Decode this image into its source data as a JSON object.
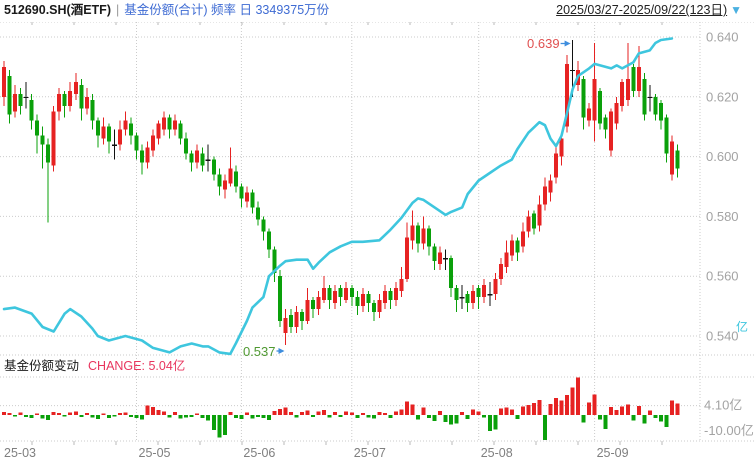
{
  "header": {
    "symbol_title": "512690.SH(酒ETF)",
    "separator": "|",
    "series_label": "基金份额(合计) 频率 日 3349375万份",
    "date_range": "2025/03/27-2025/09/22(123日)",
    "dropdown_icon": "▼"
  },
  "panel2_header": {
    "label": "基金份额变动",
    "change_label": "CHANGE: 5.04亿"
  },
  "colors": {
    "up": "#e62222",
    "down": "#0aa00a",
    "doji": "#111111",
    "share_line": "#3ec6de",
    "header_accent": "#3e6bd3",
    "dropdown": "#4ab0e0",
    "change_text": "#e8355e",
    "annotation_high": "#e05050",
    "annotation_low": "#4f9931",
    "arrow": "#3e8ede"
  },
  "chart_data": {
    "type": "candlestick",
    "overlays": [
      "line",
      "bar"
    ],
    "title": "512690.SH(酒ETF) 基金份额(合计) 频率 日",
    "total_days": 123,
    "x_axis": {
      "month_labels": [
        {
          "label": "25-03",
          "day": 0
        },
        {
          "label": "25-05",
          "day": 24
        },
        {
          "label": "25-06",
          "day": 43
        },
        {
          "label": "25-07",
          "day": 63
        },
        {
          "label": "25-08",
          "day": 86
        },
        {
          "label": "25-09",
          "day": 107
        }
      ]
    },
    "price_axis": {
      "ticks": [
        0.64,
        0.62,
        0.6,
        0.58,
        0.56,
        0.54
      ],
      "unit_hint": "亿"
    },
    "volume_axis": {
      "ticks": [
        {
          "label": "4.10亿",
          "value": 4.1
        },
        {
          "label": "-10.00亿",
          "value": -10.0
        }
      ]
    },
    "annotations": {
      "high": {
        "label": "0.639",
        "value": 0.639,
        "day": 103
      },
      "low": {
        "label": "0.537",
        "value": 0.537,
        "day": 51
      }
    },
    "candles": [
      [
        0.62,
        0.632,
        0.617,
        0.63
      ],
      [
        0.627,
        0.629,
        0.611,
        0.614
      ],
      [
        0.615,
        0.624,
        0.613,
        0.621
      ],
      [
        0.621,
        0.623,
        0.614,
        0.617
      ],
      [
        0.62,
        0.625,
        0.616,
        0.62
      ],
      [
        0.619,
        0.621,
        0.609,
        0.612
      ],
      [
        0.612,
        0.614,
        0.601,
        0.607
      ],
      [
        0.607,
        0.61,
        0.596,
        0.604
      ],
      [
        0.604,
        0.606,
        0.578,
        0.598
      ],
      [
        0.597,
        0.617,
        0.595,
        0.615
      ],
      [
        0.615,
        0.623,
        0.612,
        0.621
      ],
      [
        0.621,
        0.622,
        0.613,
        0.617
      ],
      [
        0.617,
        0.625,
        0.615,
        0.622
      ],
      [
        0.621,
        0.628,
        0.619,
        0.625
      ],
      [
        0.624,
        0.626,
        0.612,
        0.616
      ],
      [
        0.616,
        0.623,
        0.614,
        0.62
      ],
      [
        0.619,
        0.621,
        0.609,
        0.612
      ],
      [
        0.612,
        0.613,
        0.603,
        0.607
      ],
      [
        0.606,
        0.613,
        0.604,
        0.61
      ],
      [
        0.61,
        0.611,
        0.601,
        0.605
      ],
      [
        0.604,
        0.609,
        0.599,
        0.604
      ],
      [
        0.604,
        0.612,
        0.602,
        0.609
      ],
      [
        0.609,
        0.615,
        0.607,
        0.612
      ],
      [
        0.611,
        0.613,
        0.604,
        0.607
      ],
      [
        0.607,
        0.608,
        0.599,
        0.602
      ],
      [
        0.602,
        0.604,
        0.594,
        0.598
      ],
      [
        0.598,
        0.605,
        0.596,
        0.603
      ],
      [
        0.602,
        0.609,
        0.6,
        0.607
      ],
      [
        0.606,
        0.612,
        0.604,
        0.611
      ],
      [
        0.609,
        0.615,
        0.607,
        0.613
      ],
      [
        0.613,
        0.614,
        0.606,
        0.609
      ],
      [
        0.609,
        0.614,
        0.607,
        0.612
      ],
      [
        0.611,
        0.612,
        0.604,
        0.606
      ],
      [
        0.606,
        0.608,
        0.599,
        0.601
      ],
      [
        0.601,
        0.602,
        0.595,
        0.598
      ],
      [
        0.598,
        0.604,
        0.596,
        0.602
      ],
      [
        0.601,
        0.603,
        0.595,
        0.597
      ],
      [
        0.599,
        0.604,
        0.595,
        0.599
      ],
      [
        0.599,
        0.6,
        0.592,
        0.594
      ],
      [
        0.594,
        0.596,
        0.587,
        0.59
      ],
      [
        0.589,
        0.594,
        0.586,
        0.592
      ],
      [
        0.591,
        0.603,
        0.59,
        0.596
      ],
      [
        0.595,
        0.597,
        0.588,
        0.59
      ],
      [
        0.59,
        0.591,
        0.583,
        0.586
      ],
      [
        0.585,
        0.59,
        0.583,
        0.588
      ],
      [
        0.588,
        0.589,
        0.581,
        0.583
      ],
      [
        0.583,
        0.585,
        0.577,
        0.579
      ],
      [
        0.579,
        0.58,
        0.572,
        0.575
      ],
      [
        0.575,
        0.576,
        0.566,
        0.569
      ],
      [
        0.569,
        0.57,
        0.558,
        0.561
      ],
      [
        0.56,
        0.562,
        0.543,
        0.545
      ],
      [
        0.541,
        0.549,
        0.537,
        0.546
      ],
      [
        0.547,
        0.549,
        0.541,
        0.543
      ],
      [
        0.543,
        0.55,
        0.541,
        0.548
      ],
      [
        0.548,
        0.549,
        0.542,
        0.545
      ],
      [
        0.545,
        0.556,
        0.544,
        0.552
      ],
      [
        0.552,
        0.553,
        0.546,
        0.549
      ],
      [
        0.549,
        0.555,
        0.547,
        0.553
      ],
      [
        0.552,
        0.56,
        0.551,
        0.556
      ],
      [
        0.556,
        0.557,
        0.549,
        0.552
      ],
      [
        0.551,
        0.557,
        0.549,
        0.555
      ],
      [
        0.556,
        0.557,
        0.55,
        0.553
      ],
      [
        0.552,
        0.558,
        0.551,
        0.556
      ],
      [
        0.556,
        0.557,
        0.55,
        0.553
      ],
      [
        0.553,
        0.555,
        0.547,
        0.55
      ],
      [
        0.55,
        0.556,
        0.548,
        0.554
      ],
      [
        0.554,
        0.555,
        0.548,
        0.551
      ],
      [
        0.551,
        0.552,
        0.545,
        0.548
      ],
      [
        0.548,
        0.554,
        0.546,
        0.552
      ],
      [
        0.551,
        0.557,
        0.549,
        0.555
      ],
      [
        0.555,
        0.556,
        0.549,
        0.552
      ],
      [
        0.552,
        0.558,
        0.55,
        0.556
      ],
      [
        0.555,
        0.563,
        0.553,
        0.559
      ],
      [
        0.559,
        0.578,
        0.558,
        0.573
      ],
      [
        0.572,
        0.582,
        0.569,
        0.577
      ],
      [
        0.577,
        0.578,
        0.568,
        0.571
      ],
      [
        0.571,
        0.58,
        0.569,
        0.576
      ],
      [
        0.576,
        0.577,
        0.567,
        0.57
      ],
      [
        0.57,
        0.571,
        0.562,
        0.565
      ],
      [
        0.564,
        0.57,
        0.562,
        0.568
      ],
      [
        0.566,
        0.569,
        0.562,
        0.566
      ],
      [
        0.566,
        0.567,
        0.553,
        0.556
      ],
      [
        0.556,
        0.557,
        0.548,
        0.552
      ],
      [
        0.553,
        0.557,
        0.549,
        0.553
      ],
      [
        0.554,
        0.555,
        0.548,
        0.551
      ],
      [
        0.551,
        0.557,
        0.549,
        0.555
      ],
      [
        0.556,
        0.557,
        0.549,
        0.553
      ],
      [
        0.553,
        0.559,
        0.551,
        0.557
      ],
      [
        0.554,
        0.558,
        0.55,
        0.554
      ],
      [
        0.554,
        0.561,
        0.552,
        0.559
      ],
      [
        0.559,
        0.566,
        0.557,
        0.564
      ],
      [
        0.563,
        0.572,
        0.561,
        0.568
      ],
      [
        0.567,
        0.574,
        0.565,
        0.572
      ],
      [
        0.572,
        0.573,
        0.565,
        0.568
      ],
      [
        0.57,
        0.578,
        0.568,
        0.575
      ],
      [
        0.575,
        0.582,
        0.573,
        0.58
      ],
      [
        0.581,
        0.582,
        0.574,
        0.576
      ],
      [
        0.577,
        0.587,
        0.575,
        0.584
      ],
      [
        0.584,
        0.593,
        0.582,
        0.59
      ],
      [
        0.588,
        0.594,
        0.585,
        0.592
      ],
      [
        0.593,
        0.604,
        0.591,
        0.601
      ],
      [
        0.6,
        0.608,
        0.597,
        0.606
      ],
      [
        0.61,
        0.634,
        0.608,
        0.631
      ],
      [
        0.629,
        0.639,
        0.62,
        0.629
      ],
      [
        0.624,
        0.632,
        0.622,
        0.629
      ],
      [
        0.626,
        0.627,
        0.609,
        0.613
      ],
      [
        0.612,
        0.618,
        0.61,
        0.616
      ],
      [
        0.612,
        0.638,
        0.605,
        0.626
      ],
      [
        0.622,
        0.623,
        0.609,
        0.611
      ],
      [
        0.613,
        0.614,
        0.606,
        0.609
      ],
      [
        0.602,
        0.616,
        0.6,
        0.615
      ],
      [
        0.611,
        0.62,
        0.609,
        0.618
      ],
      [
        0.617,
        0.626,
        0.615,
        0.625
      ],
      [
        0.619,
        0.638,
        0.617,
        0.626
      ],
      [
        0.63,
        0.631,
        0.62,
        0.622
      ],
      [
        0.622,
        0.637,
        0.62,
        0.63
      ],
      [
        0.626,
        0.628,
        0.612,
        0.614
      ],
      [
        0.62,
        0.624,
        0.615,
        0.62
      ],
      [
        0.62,
        0.621,
        0.612,
        0.614
      ],
      [
        0.618,
        0.619,
        0.609,
        0.612
      ],
      [
        0.613,
        0.614,
        0.598,
        0.601
      ],
      [
        0.594,
        0.607,
        0.592,
        0.605
      ],
      [
        0.602,
        0.604,
        0.593,
        0.596
      ]
    ],
    "share_line": {
      "unit": "万份",
      "latest": 3349375,
      "points_price_scale": [
        [
          0,
          0.549
        ],
        [
          2,
          0.5495
        ],
        [
          5,
          0.5475
        ],
        [
          7,
          0.543
        ],
        [
          9,
          0.5415
        ],
        [
          11,
          0.5475
        ],
        [
          12,
          0.549
        ],
        [
          14,
          0.5465
        ],
        [
          16,
          0.5425
        ],
        [
          17,
          0.54
        ],
        [
          19,
          0.5385
        ],
        [
          22,
          0.54
        ],
        [
          25,
          0.5385
        ],
        [
          27,
          0.536
        ],
        [
          30,
          0.5345
        ],
        [
          32,
          0.5365
        ],
        [
          34,
          0.5375
        ],
        [
          36,
          0.5365
        ],
        [
          37,
          0.5365
        ],
        [
          39,
          0.5345
        ],
        [
          41,
          0.534
        ],
        [
          42,
          0.5375
        ],
        [
          44,
          0.545
        ],
        [
          45,
          0.5495
        ],
        [
          47,
          0.553
        ],
        [
          48,
          0.56
        ],
        [
          50,
          0.5635
        ],
        [
          51,
          0.565
        ],
        [
          53,
          0.5655
        ],
        [
          55,
          0.5655
        ],
        [
          56,
          0.5625
        ],
        [
          57,
          0.5645
        ],
        [
          59,
          0.568
        ],
        [
          61,
          0.57
        ],
        [
          63,
          0.5715
        ],
        [
          65,
          0.5715
        ],
        [
          68,
          0.572
        ],
        [
          70,
          0.5755
        ],
        [
          72,
          0.5795
        ],
        [
          74,
          0.5845
        ],
        [
          75,
          0.586
        ],
        [
          76,
          0.5855
        ],
        [
          78,
          0.583
        ],
        [
          80,
          0.5805
        ],
        [
          81,
          0.5815
        ],
        [
          83,
          0.583
        ],
        [
          84,
          0.5875
        ],
        [
          86,
          0.592
        ],
        [
          88,
          0.5945
        ],
        [
          90,
          0.597
        ],
        [
          92,
          0.599
        ],
        [
          93,
          0.6025
        ],
        [
          95,
          0.608
        ],
        [
          97,
          0.6115
        ],
        [
          98,
          0.6105
        ],
        [
          99,
          0.606
        ],
        [
          100,
          0.6035
        ],
        [
          101,
          0.607
        ],
        [
          102,
          0.6145
        ],
        [
          103,
          0.6225
        ],
        [
          104,
          0.627
        ],
        [
          106,
          0.6295
        ],
        [
          107,
          0.631
        ],
        [
          109,
          0.63
        ],
        [
          110,
          0.6295
        ],
        [
          111,
          0.6305
        ],
        [
          112,
          0.6295
        ],
        [
          114,
          0.6315
        ],
        [
          115,
          0.6345
        ],
        [
          116,
          0.635
        ],
        [
          117,
          0.6355
        ],
        [
          118,
          0.638
        ],
        [
          119,
          0.639
        ],
        [
          121,
          0.6395
        ]
      ]
    },
    "share_change_bars": {
      "unit": "亿",
      "latest_label": "5.04亿",
      "values": [
        1.4,
        0.9,
        -0.6,
        1.1,
        -0.9,
        -1.3,
        0.7,
        -1.6,
        -2.2,
        1.2,
        0.8,
        -0.7,
        1.0,
        1.5,
        -0.8,
        0.9,
        -1.1,
        -1.8,
        0.6,
        -1.2,
        -0.5,
        0.8,
        1.1,
        -0.9,
        -1.4,
        -2.0,
        4.2,
        3.4,
        2.2,
        1.6,
        -1.0,
        1.2,
        -1.5,
        -1.1,
        -0.8,
        0.7,
        -1.3,
        -2.4,
        -6.5,
        -9.8,
        -8.6,
        1.4,
        -1.2,
        -1.8,
        1.0,
        -1.5,
        -0.9,
        -1.3,
        -2.1,
        1.8,
        2.6,
        3.2,
        1.4,
        -1.0,
        1.2,
        2.0,
        -0.8,
        1.5,
        2.2,
        -1.1,
        1.3,
        -0.9,
        1.6,
        1.0,
        -1.4,
        0.8,
        -1.0,
        -1.6,
        1.2,
        0.9,
        -1.2,
        1.5,
        2.4,
        5.8,
        4.6,
        -2.0,
        3.2,
        -1.4,
        -2.6,
        1.8,
        -3.0,
        -4.2,
        -3.6,
        1.2,
        -1.8,
        2.4,
        1.6,
        -1.0,
        -7.0,
        -6.2,
        2.8,
        3.2,
        2.4,
        -1.8,
        3.6,
        4.4,
        5.2,
        6.6,
        -10.8,
        4.8,
        7.4,
        6.2,
        8.8,
        12.0,
        16.2,
        -3.2,
        5.4,
        9.0,
        -2.0,
        -6.0,
        3.4,
        2.2,
        3.8,
        4.6,
        -2.4,
        4.0,
        -3.6,
        2.0,
        -1.4,
        -2.8,
        -5.2,
        6.4,
        5.04
      ]
    }
  }
}
